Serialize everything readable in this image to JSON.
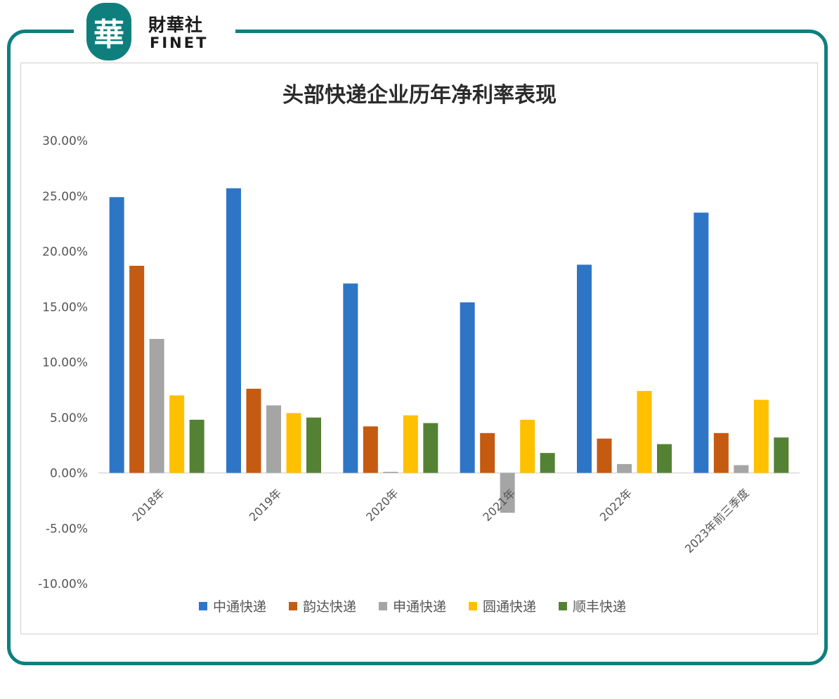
{
  "logo": {
    "badge_char": "華",
    "name_cn": "財華社",
    "name_en": "FINET"
  },
  "colors": {
    "frame": "#0f7f7e",
    "axis": "#d9d9d9"
  },
  "chart_data": {
    "type": "bar",
    "title": "头部快递企业历年净利率表现",
    "categories": [
      "2018年",
      "2019年",
      "2020年",
      "2021年",
      "2022年",
      "2023年前三季度"
    ],
    "ylim": [
      -10,
      30
    ],
    "yticks": [
      30,
      25,
      20,
      15,
      10,
      5,
      0,
      -5,
      -10
    ],
    "ytick_labels": [
      "30.00%",
      "25.00%",
      "20.00%",
      "15.00%",
      "10.00%",
      "5.00%",
      "0.00%",
      "-5.00%",
      "-10.00%"
    ],
    "legend_position": "bottom",
    "series": [
      {
        "name": "中通快递",
        "color": "#2e75c6",
        "values": [
          24.9,
          25.7,
          17.1,
          15.4,
          18.8,
          23.5
        ]
      },
      {
        "name": "韵达快递",
        "color": "#c55a11",
        "values": [
          18.7,
          7.6,
          4.2,
          3.6,
          3.1,
          3.6
        ]
      },
      {
        "name": "申通快递",
        "color": "#a5a5a5",
        "values": [
          12.1,
          6.1,
          0.1,
          -3.6,
          0.8,
          0.7
        ]
      },
      {
        "name": "圆通快递",
        "color": "#ffc000",
        "values": [
          7.0,
          5.4,
          5.2,
          4.8,
          7.4,
          6.6
        ]
      },
      {
        "name": "顺丰快递",
        "color": "#548235",
        "values": [
          4.8,
          5.0,
          4.5,
          1.8,
          2.6,
          3.2
        ]
      }
    ]
  }
}
